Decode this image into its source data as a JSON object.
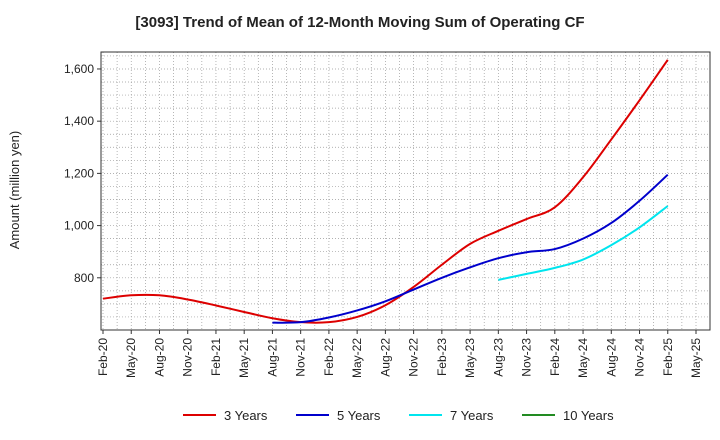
{
  "chart_data": {
    "type": "line",
    "title": "[3093]  Trend of Mean of 12-Month Moving Sum of Operating CF",
    "xlabel": "",
    "ylabel": "Amount (million yen)",
    "x_ticks": [
      "Feb-20",
      "May-20",
      "Aug-20",
      "Nov-20",
      "Feb-21",
      "May-21",
      "Aug-21",
      "Nov-21",
      "Feb-22",
      "May-22",
      "Aug-22",
      "Nov-22",
      "Feb-23",
      "May-23",
      "Aug-23",
      "Nov-23",
      "Feb-24",
      "May-24",
      "Aug-24",
      "Nov-24",
      "Feb-25",
      "May-25"
    ],
    "y_ticks": [
      800,
      1000,
      1200,
      1400,
      1600
    ],
    "y_tick_labels": [
      "800",
      "1,000",
      "1,200",
      "1,400",
      "1,600"
    ],
    "ylim": [
      600,
      1665
    ],
    "grid": true,
    "legend_position": "bottom",
    "series": [
      {
        "name": "3 Years",
        "color": "#dd0000",
        "points": [
          [
            0,
            720
          ],
          [
            1,
            733
          ],
          [
            2,
            733
          ],
          [
            3,
            717
          ],
          [
            4,
            694
          ],
          [
            5,
            669
          ],
          [
            6,
            645
          ],
          [
            7,
            630
          ],
          [
            8,
            630
          ],
          [
            9,
            650
          ],
          [
            10,
            695
          ],
          [
            11,
            765
          ],
          [
            12,
            850
          ],
          [
            13,
            930
          ],
          [
            14,
            980
          ],
          [
            15,
            1025
          ],
          [
            16,
            1070
          ],
          [
            17,
            1185
          ],
          [
            18,
            1330
          ],
          [
            19,
            1480
          ],
          [
            20,
            1635
          ]
        ]
      },
      {
        "name": "5 Years",
        "color": "#0000cc",
        "points": [
          [
            6,
            628
          ],
          [
            7,
            630
          ],
          [
            8,
            648
          ],
          [
            9,
            675
          ],
          [
            10,
            710
          ],
          [
            11,
            755
          ],
          [
            12,
            800
          ],
          [
            13,
            840
          ],
          [
            14,
            875
          ],
          [
            15,
            898
          ],
          [
            16,
            910
          ],
          [
            17,
            950
          ],
          [
            18,
            1010
          ],
          [
            19,
            1095
          ],
          [
            20,
            1195
          ]
        ]
      },
      {
        "name": "7 Years",
        "color": "#00e5ee",
        "points": [
          [
            14,
            792
          ],
          [
            15,
            815
          ],
          [
            16,
            838
          ],
          [
            17,
            870
          ],
          [
            18,
            925
          ],
          [
            19,
            993
          ],
          [
            20,
            1075
          ]
        ]
      },
      {
        "name": "10 Years",
        "color": "#228b22",
        "points": []
      }
    ]
  }
}
